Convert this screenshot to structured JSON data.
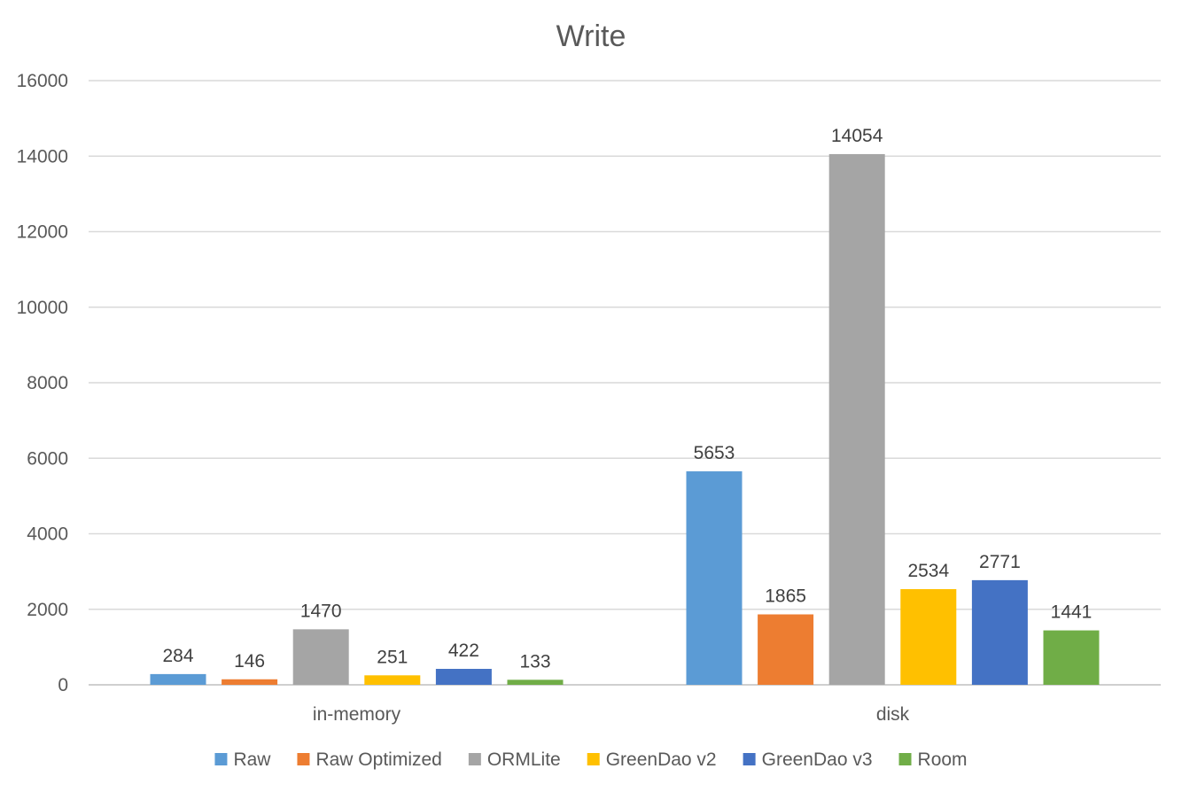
{
  "chart_data": {
    "type": "bar",
    "title": "Write",
    "xlabel": "",
    "ylabel": "",
    "categories": [
      "in-memory",
      "disk"
    ],
    "ylim": [
      0,
      16000
    ],
    "yticks": [
      0,
      2000,
      4000,
      6000,
      8000,
      10000,
      12000,
      14000,
      16000
    ],
    "grid": true,
    "legend_position": "bottom",
    "data_labels": true,
    "series": [
      {
        "name": "Raw",
        "color": "#5B9BD5",
        "values": [
          284,
          5653
        ]
      },
      {
        "name": "Raw Optimized",
        "color": "#ED7D31",
        "values": [
          146,
          1865
        ]
      },
      {
        "name": "ORMLite",
        "color": "#A5A5A5",
        "values": [
          1470,
          14054
        ]
      },
      {
        "name": "GreenDao v2",
        "color": "#FFC000",
        "values": [
          251,
          2534
        ]
      },
      {
        "name": "GreenDao v3",
        "color": "#4472C4",
        "values": [
          422,
          2771
        ]
      },
      {
        "name": "Room",
        "color": "#70AD47",
        "values": [
          133,
          1441
        ]
      }
    ]
  }
}
